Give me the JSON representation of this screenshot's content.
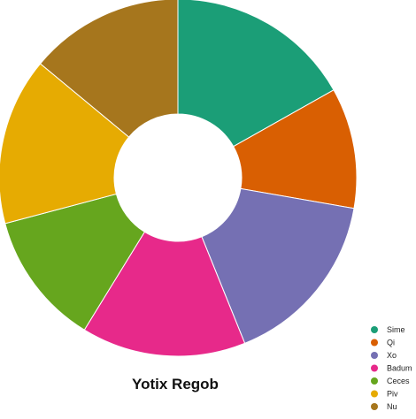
{
  "chart_data": {
    "type": "pie",
    "variant": "donut",
    "title": "Yotix Regob",
    "categories": [
      "Sime",
      "Qi",
      "Xo",
      "Badum",
      "Ceces",
      "Piv",
      "Nu"
    ],
    "values": [
      17.1,
      11.1,
      16.4,
      15.1,
      12.3,
      15.4,
      14.2
    ],
    "colors": [
      "#1b9e77",
      "#d95f02",
      "#7570b3",
      "#e7298a",
      "#66a61e",
      "#e6ab02",
      "#a6761d"
    ],
    "legend_position": "bottom-right",
    "start_angle_deg": 0,
    "direction": "clockwise"
  }
}
